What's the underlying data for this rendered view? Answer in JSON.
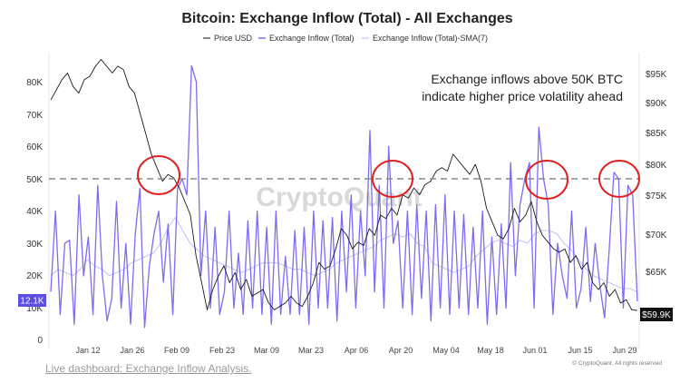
{
  "chart_data": {
    "type": "line",
    "title": "Bitcoin: Exchange Inflow (Total) - All Exchanges",
    "legend": [
      "Price USD",
      "Exchange Inflow (Total)",
      "Exchange Inflow (Total)-SMA(7)"
    ],
    "legend_placement": "top-center",
    "x_ticks": [
      "Jan 12",
      "Jan 26",
      "Feb 09",
      "Feb 23",
      "Mar 09",
      "Mar 23",
      "Apr 06",
      "Apr 20",
      "May 04",
      "May 18",
      "Jun 01",
      "Jun 15",
      "Jun 29"
    ],
    "y_left_ticks": [
      "0",
      "10K",
      "20K",
      "30K",
      "40K",
      "50K",
      "60K",
      "70K",
      "80K"
    ],
    "y_left_range": [
      0,
      90000
    ],
    "y_right_ticks": [
      "$65K",
      "$70K",
      "$75K",
      "$80K",
      "$85K",
      "$90K",
      "$95K"
    ],
    "y_right_range": [
      57500,
      98000
    ],
    "current_inflow_label": "12.1K",
    "current_price_label": "$59.9K",
    "threshold_value": 50000,
    "annotation": [
      "Exchange inflows above 50K BTC",
      "indicate higher price volatility ahead"
    ],
    "watermark": "CryptoQuant",
    "copyright": "© CryptoQuant. All rights reserved",
    "grid": false,
    "colors": {
      "price": "#1a1a1a",
      "inflow": "#7b6cf0",
      "sma": "#c9c3f4",
      "threshold": "#888888",
      "circle": "#e02020",
      "inflow_badge": "#5b4ee0"
    },
    "series": [
      {
        "name": "Exchange Inflow (Total)",
        "values": [
          15000,
          40000,
          8000,
          30000,
          31000,
          5000,
          45000,
          20000,
          32000,
          8000,
          48000,
          20000,
          6000,
          13000,
          43000,
          10000,
          30000,
          5000,
          33000,
          47000,
          4000,
          23000,
          33000,
          40000,
          18000,
          36000,
          8000,
          47000,
          50000,
          45000,
          85000,
          80000,
          20000,
          40000,
          10000,
          35000,
          8000,
          15000,
          40000,
          10000,
          27000,
          8000,
          37000,
          10000,
          40000,
          8000,
          35000,
          5000,
          40000,
          8000,
          26000,
          8000,
          34000,
          8000,
          35000,
          5000,
          40000,
          10000,
          37000,
          10000,
          38000,
          6000,
          40000,
          15000,
          45000,
          10000,
          40000,
          20000,
          65000,
          15000,
          48000,
          10000,
          60000,
          30000,
          37000,
          10000,
          40000,
          8000,
          42000,
          13000,
          40000,
          6000,
          42000,
          10000,
          45000,
          8000,
          40000,
          10000,
          39000,
          8000,
          35000,
          10000,
          40000,
          5000,
          32000,
          8000,
          36000,
          10000,
          55000,
          20000,
          42000,
          50000,
          55000,
          10000,
          66000,
          50000,
          42000,
          8000,
          30000,
          20000,
          13000,
          40000,
          10000,
          16000,
          35000,
          12000,
          30000,
          17000,
          7000,
          28000,
          52000,
          50000,
          10000,
          48000,
          45000,
          12100
        ]
      },
      {
        "name": "Exchange Inflow (Total)-SMA(7)",
        "values": [
          20000,
          22000,
          21000,
          20000,
          22000,
          25000,
          23000,
          22000,
          20000,
          21000,
          22000,
          24000,
          25000,
          26000,
          27000,
          30000,
          35000,
          38000,
          34000,
          30000,
          28000,
          26000,
          25000,
          24000,
          23000,
          22000,
          21000,
          22000,
          23000,
          24000,
          24000,
          24000,
          23000,
          22000,
          22000,
          21000,
          20000,
          21000,
          22000,
          24000,
          25000,
          26000,
          27000,
          28000,
          29000,
          31000,
          32000,
          33000,
          32000,
          33000,
          30000,
          29000,
          24000,
          23000,
          22000,
          21000,
          22000,
          23000,
          26000,
          28000,
          30000,
          31000,
          30000,
          29000,
          31000,
          30000,
          33000,
          34000,
          34000,
          33000,
          30000,
          28000,
          25000,
          22000,
          20000,
          19000,
          18000,
          17000,
          16000,
          16000,
          15000
        ]
      },
      {
        "name": "Price USD",
        "values": [
          91000,
          92500,
          94000,
          95000,
          93000,
          92000,
          94000,
          94500,
          96000,
          97000,
          96000,
          95000,
          96000,
          95500,
          93000,
          92000,
          89000,
          86000,
          83000,
          81000,
          79000,
          80000,
          79500,
          78000,
          76000,
          74000,
          68000,
          64000,
          60000,
          63000,
          65000,
          66500,
          64000,
          65500,
          63000,
          64500,
          62000,
          62500,
          63000,
          61000,
          60000,
          60500,
          61000,
          62000,
          61000,
          60500,
          62000,
          64000,
          67000,
          66000,
          66500,
          69000,
          72000,
          71000,
          69000,
          70000,
          69500,
          72000,
          71000,
          74000,
          73500,
          75000,
          74000,
          77000,
          76500,
          78000,
          77000,
          78500,
          79000,
          80500,
          81000,
          80500,
          83000,
          82000,
          81000,
          80000,
          81500,
          79000,
          75000,
          73000,
          71000,
          70500,
          72000,
          75000,
          73000,
          74000,
          76000,
          73000,
          71000,
          70000,
          69000,
          68500,
          69000,
          67000,
          68000,
          66000,
          67000,
          64000,
          63000,
          64000,
          62000,
          63000,
          61000,
          61500,
          60000,
          59900
        ]
      }
    ]
  },
  "footer": {
    "link_text": "Live dashboard: Exchange Inflow Analysis."
  }
}
